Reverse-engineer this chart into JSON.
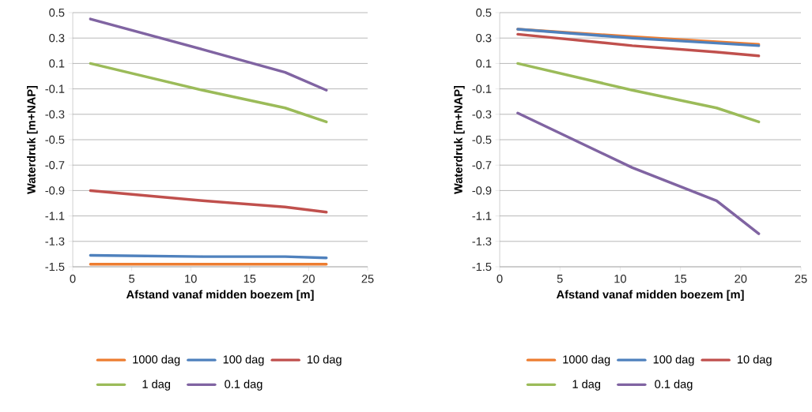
{
  "chart_data": [
    {
      "type": "line",
      "xlabel": "Afstand vanaf midden boezem [m]",
      "ylabel": "Waterdruk [m+NAP]",
      "x": [
        1.5,
        11,
        18,
        21.5
      ],
      "xlim": [
        0,
        25
      ],
      "xticks": [
        0,
        5,
        10,
        15,
        20,
        25
      ],
      "ylim": [
        -1.5,
        0.5
      ],
      "yticks": [
        -1.5,
        -1.3,
        -1.1,
        -0.9,
        -0.7,
        -0.5,
        -0.3,
        -0.1,
        0.1,
        0.3,
        0.5
      ],
      "grid": "y",
      "legend": "bottom",
      "series": [
        {
          "name": "1000 dag",
          "color": "#ed7d31",
          "values": [
            -1.48,
            -1.48,
            -1.48,
            -1.48
          ]
        },
        {
          "name": "100 dag",
          "color": "#4f81bd",
          "values": [
            -1.41,
            -1.42,
            -1.42,
            -1.43
          ]
        },
        {
          "name": "10 dag",
          "color": "#c0504d",
          "values": [
            -0.9,
            -0.98,
            -1.03,
            -1.07
          ]
        },
        {
          "name": "1 dag",
          "color": "#9bbb59",
          "values": [
            0.1,
            -0.11,
            -0.25,
            -0.36
          ]
        },
        {
          "name": "0.1 dag",
          "color": "#8064a2",
          "values": [
            0.45,
            0.21,
            0.03,
            -0.11
          ]
        }
      ]
    },
    {
      "type": "line",
      "xlabel": "Afstand vanaf midden boezem [m]",
      "ylabel": "Waterdruk [m+NAP]",
      "x": [
        1.5,
        11,
        18,
        21.5
      ],
      "xlim": [
        0,
        25
      ],
      "xticks": [
        0,
        5,
        10,
        15,
        20,
        25
      ],
      "ylim": [
        -1.5,
        0.5
      ],
      "yticks": [
        -1.5,
        -1.3,
        -1.1,
        -0.9,
        -0.7,
        -0.5,
        -0.3,
        -0.1,
        0.1,
        0.3,
        0.5
      ],
      "grid": "y",
      "legend": "bottom",
      "series": [
        {
          "name": "1000 dag",
          "color": "#ed7d31",
          "values": [
            0.37,
            0.31,
            0.27,
            0.25
          ]
        },
        {
          "name": "100 dag",
          "color": "#4f81bd",
          "values": [
            0.37,
            0.3,
            0.26,
            0.24
          ]
        },
        {
          "name": "10 dag",
          "color": "#c0504d",
          "values": [
            0.33,
            0.24,
            0.19,
            0.16
          ]
        },
        {
          "name": "1 dag",
          "color": "#9bbb59",
          "values": [
            0.1,
            -0.11,
            -0.25,
            -0.36
          ]
        },
        {
          "name": "0.1 dag",
          "color": "#8064a2",
          "values": [
            -0.29,
            -0.72,
            -0.98,
            -1.24
          ]
        }
      ]
    }
  ]
}
